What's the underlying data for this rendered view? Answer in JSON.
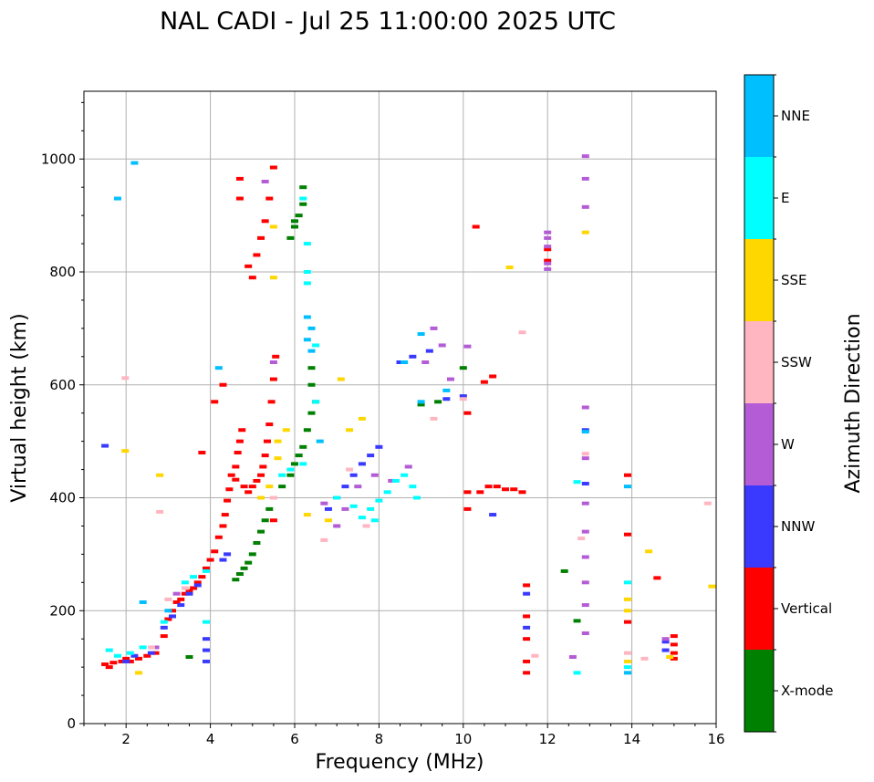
{
  "chart_data": {
    "type": "scatter",
    "title": "NAL CADI - Jul 25 11:00:00 2025 UTC",
    "xlabel": "Frequency (MHz)",
    "ylabel": "Virtual height (km)",
    "xlim": [
      1,
      16
    ],
    "ylim": [
      0,
      1120
    ],
    "xticks": [
      2,
      4,
      6,
      8,
      10,
      12,
      14,
      16
    ],
    "yticks": [
      0,
      200,
      400,
      600,
      800,
      1000
    ],
    "grid": true,
    "colorbar": {
      "label": "Azimuth Direction",
      "categories": [
        "X-mode",
        "Vertical",
        "NNW",
        "W",
        "SSW",
        "SSE",
        "E",
        "NNE"
      ],
      "colors": [
        "#008000",
        "#ff0000",
        "#3a3aff",
        "#b45cd6",
        "#ffb6c1",
        "#ffd700",
        "#00ffff",
        "#00bfff"
      ]
    },
    "series": [
      {
        "name": "Vertical",
        "color": "#ff0000",
        "points": [
          [
            1.5,
            105
          ],
          [
            1.6,
            100
          ],
          [
            1.7,
            108
          ],
          [
            1.9,
            110
          ],
          [
            2.0,
            115
          ],
          [
            2.1,
            110
          ],
          [
            2.3,
            115
          ],
          [
            2.5,
            120
          ],
          [
            2.7,
            125
          ],
          [
            2.9,
            155
          ],
          [
            3.0,
            185
          ],
          [
            3.1,
            200
          ],
          [
            3.2,
            215
          ],
          [
            3.3,
            220
          ],
          [
            3.4,
            230
          ],
          [
            3.5,
            235
          ],
          [
            3.6,
            240
          ],
          [
            3.7,
            250
          ],
          [
            3.8,
            260
          ],
          [
            3.9,
            275
          ],
          [
            4.0,
            290
          ],
          [
            4.1,
            305
          ],
          [
            4.2,
            330
          ],
          [
            4.3,
            350
          ],
          [
            4.35,
            370
          ],
          [
            4.4,
            395
          ],
          [
            4.45,
            415
          ],
          [
            4.5,
            440
          ],
          [
            4.6,
            455
          ],
          [
            4.65,
            480
          ],
          [
            4.7,
            500
          ],
          [
            4.75,
            520
          ],
          [
            4.6,
            432
          ],
          [
            4.8,
            420
          ],
          [
            4.9,
            410
          ],
          [
            5.0,
            420
          ],
          [
            5.1,
            430
          ],
          [
            5.2,
            440
          ],
          [
            5.25,
            455
          ],
          [
            5.3,
            475
          ],
          [
            5.35,
            500
          ],
          [
            5.4,
            530
          ],
          [
            5.45,
            570
          ],
          [
            5.5,
            610
          ],
          [
            5.55,
            650
          ],
          [
            5.0,
            790
          ],
          [
            4.9,
            810
          ],
          [
            5.1,
            830
          ],
          [
            5.2,
            860
          ],
          [
            5.3,
            890
          ],
          [
            5.4,
            930
          ],
          [
            5.5,
            985
          ],
          [
            4.7,
            965
          ],
          [
            4.7,
            930
          ],
          [
            3.8,
            480
          ],
          [
            4.1,
            570
          ],
          [
            4.3,
            600
          ],
          [
            5.5,
            360
          ],
          [
            10.1,
            410
          ],
          [
            10.1,
            380
          ],
          [
            10.4,
            410
          ],
          [
            10.6,
            420
          ],
          [
            10.8,
            420
          ],
          [
            11.0,
            415
          ],
          [
            11.2,
            415
          ],
          [
            11.4,
            410
          ],
          [
            11.5,
            245
          ],
          [
            11.5,
            190
          ],
          [
            11.5,
            150
          ],
          [
            11.5,
            110
          ],
          [
            11.5,
            90
          ],
          [
            12.0,
            820
          ],
          [
            12.0,
            840
          ],
          [
            13.9,
            335
          ],
          [
            13.9,
            440
          ],
          [
            13.9,
            180
          ],
          [
            14.6,
            258
          ],
          [
            15.0,
            125
          ],
          [
            15.0,
            140
          ],
          [
            15.0,
            155
          ],
          [
            15.0,
            115
          ],
          [
            10.3,
            880
          ],
          [
            10.7,
            615
          ],
          [
            10.5,
            605
          ],
          [
            10.1,
            550
          ]
        ]
      },
      {
        "name": "X-mode",
        "color": "#008000",
        "points": [
          [
            4.6,
            255
          ],
          [
            4.7,
            265
          ],
          [
            4.8,
            275
          ],
          [
            4.9,
            285
          ],
          [
            5.0,
            300
          ],
          [
            5.1,
            320
          ],
          [
            5.2,
            340
          ],
          [
            5.3,
            360
          ],
          [
            5.4,
            380
          ],
          [
            5.7,
            420
          ],
          [
            5.9,
            440
          ],
          [
            6.0,
            460
          ],
          [
            6.1,
            475
          ],
          [
            6.2,
            490
          ],
          [
            6.3,
            520
          ],
          [
            6.4,
            550
          ],
          [
            6.5,
            570
          ],
          [
            6.4,
            600
          ],
          [
            6.4,
            630
          ],
          [
            5.9,
            860
          ],
          [
            6.0,
            880
          ],
          [
            6.1,
            900
          ],
          [
            6.2,
            920
          ],
          [
            6.2,
            950
          ],
          [
            6.0,
            890
          ],
          [
            9.0,
            565
          ],
          [
            9.4,
            570
          ],
          [
            10.0,
            630
          ],
          [
            12.4,
            270
          ],
          [
            12.7,
            182
          ],
          [
            3.5,
            118
          ]
        ]
      },
      {
        "name": "NNW",
        "color": "#3a3aff",
        "points": [
          [
            1.5,
            492
          ],
          [
            2.0,
            110
          ],
          [
            2.2,
            120
          ],
          [
            2.6,
            125
          ],
          [
            2.9,
            170
          ],
          [
            3.1,
            190
          ],
          [
            3.3,
            210
          ],
          [
            3.5,
            230
          ],
          [
            3.7,
            245
          ],
          [
            3.9,
            110
          ],
          [
            3.9,
            130
          ],
          [
            3.9,
            150
          ],
          [
            4.4,
            300
          ],
          [
            4.3,
            290
          ],
          [
            6.8,
            380
          ],
          [
            7.0,
            400
          ],
          [
            7.2,
            420
          ],
          [
            7.4,
            440
          ],
          [
            7.6,
            460
          ],
          [
            7.8,
            475
          ],
          [
            8.0,
            490
          ],
          [
            8.5,
            640
          ],
          [
            8.8,
            650
          ],
          [
            9.2,
            660
          ],
          [
            9.6,
            575
          ],
          [
            10.0,
            580
          ],
          [
            10.7,
            370
          ],
          [
            11.5,
            230
          ],
          [
            11.5,
            170
          ],
          [
            12.9,
            520
          ],
          [
            12.9,
            425
          ],
          [
            14.8,
            130
          ],
          [
            14.8,
            145
          ]
        ]
      },
      {
        "name": "W",
        "color": "#b45cd6",
        "points": [
          [
            2.7,
            135
          ],
          [
            3.2,
            230
          ],
          [
            5.5,
            640
          ],
          [
            5.3,
            960
          ],
          [
            6.7,
            390
          ],
          [
            7.0,
            350
          ],
          [
            7.2,
            380
          ],
          [
            7.5,
            420
          ],
          [
            7.9,
            440
          ],
          [
            8.3,
            430
          ],
          [
            8.7,
            455
          ],
          [
            9.1,
            640
          ],
          [
            9.3,
            700
          ],
          [
            9.5,
            670
          ],
          [
            9.7,
            610
          ],
          [
            10.1,
            668
          ],
          [
            12.0,
            870
          ],
          [
            12.0,
            860
          ],
          [
            12.0,
            845
          ],
          [
            12.0,
            815
          ],
          [
            12.0,
            805
          ],
          [
            12.9,
            1005
          ],
          [
            12.9,
            965
          ],
          [
            12.9,
            915
          ],
          [
            12.9,
            560
          ],
          [
            12.9,
            470
          ],
          [
            12.9,
            390
          ],
          [
            12.9,
            340
          ],
          [
            12.9,
            295
          ],
          [
            12.9,
            250
          ],
          [
            12.9,
            210
          ],
          [
            12.9,
            160
          ],
          [
            12.6,
            118
          ],
          [
            14.8,
            150
          ]
        ]
      },
      {
        "name": "SSW",
        "color": "#ffb6c1",
        "points": [
          [
            1.98,
            612
          ],
          [
            2.6,
            135
          ],
          [
            2.8,
            375
          ],
          [
            3.0,
            220
          ],
          [
            3.4,
            240
          ],
          [
            5.5,
            400
          ],
          [
            6.7,
            325
          ],
          [
            7.3,
            450
          ],
          [
            7.7,
            350
          ],
          [
            9.3,
            540
          ],
          [
            10.0,
            575
          ],
          [
            11.4,
            693
          ],
          [
            11.7,
            120
          ],
          [
            12.8,
            328
          ],
          [
            12.9,
            478
          ],
          [
            13.9,
            125
          ],
          [
            14.3,
            115
          ],
          [
            15.8,
            390
          ]
        ]
      },
      {
        "name": "SSE",
        "color": "#ffd700",
        "points": [
          [
            1.98,
            483
          ],
          [
            2.3,
            90
          ],
          [
            2.8,
            440
          ],
          [
            5.2,
            400
          ],
          [
            5.4,
            420
          ],
          [
            5.6,
            500
          ],
          [
            5.8,
            520
          ],
          [
            5.5,
            790
          ],
          [
            5.5,
            880
          ],
          [
            5.6,
            470
          ],
          [
            6.3,
            370
          ],
          [
            6.8,
            360
          ],
          [
            7.1,
            610
          ],
          [
            7.3,
            520
          ],
          [
            7.6,
            540
          ],
          [
            11.1,
            808
          ],
          [
            12.9,
            870
          ],
          [
            13.9,
            200
          ],
          [
            13.9,
            220
          ],
          [
            13.9,
            110
          ],
          [
            14.4,
            305
          ],
          [
            14.9,
            118
          ],
          [
            15.9,
            243
          ]
        ]
      },
      {
        "name": "E",
        "color": "#00ffff",
        "points": [
          [
            1.6,
            130
          ],
          [
            1.8,
            120
          ],
          [
            2.1,
            125
          ],
          [
            2.4,
            135
          ],
          [
            2.9,
            180
          ],
          [
            3.4,
            250
          ],
          [
            3.6,
            260
          ],
          [
            3.9,
            270
          ],
          [
            3.9,
            180
          ],
          [
            5.7,
            440
          ],
          [
            5.9,
            450
          ],
          [
            6.2,
            460
          ],
          [
            6.3,
            800
          ],
          [
            6.3,
            780
          ],
          [
            6.5,
            570
          ],
          [
            7.0,
            400
          ],
          [
            7.4,
            385
          ],
          [
            7.6,
            365
          ],
          [
            7.8,
            380
          ],
          [
            8.0,
            395
          ],
          [
            8.2,
            410
          ],
          [
            8.4,
            430
          ],
          [
            8.6,
            440
          ],
          [
            8.8,
            420
          ],
          [
            8.9,
            400
          ],
          [
            7.9,
            360
          ],
          [
            6.5,
            670
          ],
          [
            12.7,
            428
          ],
          [
            12.7,
            90
          ],
          [
            13.9,
            250
          ],
          [
            13.9,
            100
          ],
          [
            6.2,
            930
          ],
          [
            6.3,
            850
          ]
        ]
      },
      {
        "name": "NNE",
        "color": "#00bfff",
        "points": [
          [
            2.2,
            993
          ],
          [
            1.8,
            930
          ],
          [
            2.4,
            215
          ],
          [
            3.0,
            200
          ],
          [
            4.2,
            630
          ],
          [
            6.3,
            720
          ],
          [
            6.4,
            700
          ],
          [
            6.3,
            680
          ],
          [
            6.4,
            660
          ],
          [
            8.6,
            640
          ],
          [
            9.0,
            690
          ],
          [
            9.0,
            570
          ],
          [
            9.6,
            590
          ],
          [
            12.9,
            517
          ],
          [
            13.9,
            420
          ],
          [
            13.9,
            90
          ],
          [
            6.6,
            500
          ]
        ]
      }
    ]
  }
}
